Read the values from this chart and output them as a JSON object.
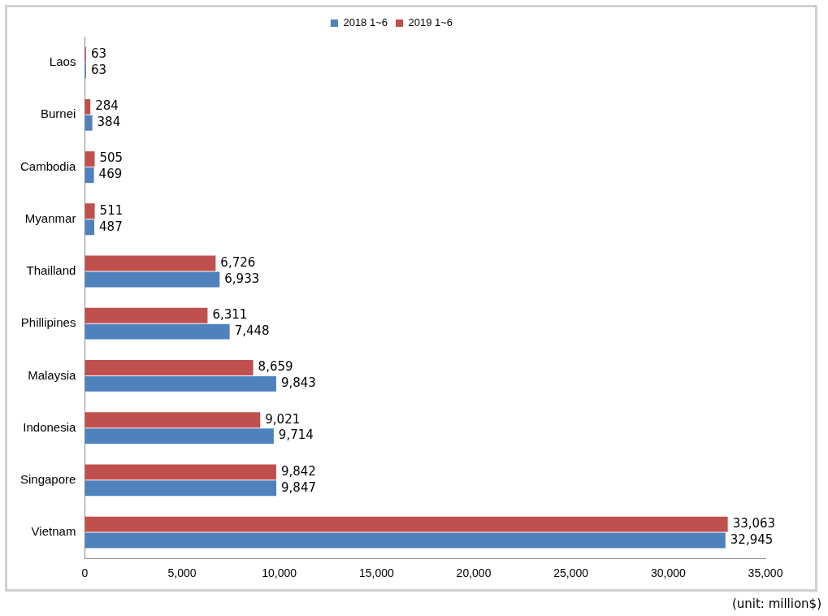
{
  "chart_data": {
    "type": "bar",
    "orientation": "horizontal",
    "categories": [
      "Laos",
      "Burnei",
      "Cambodia",
      "Myanmar",
      "Thailland",
      "Phillipines",
      "Malaysia",
      "Indonesia",
      "Singapore",
      "Vietnam"
    ],
    "series": [
      {
        "name": "2019 1~6",
        "color": "#c0504d",
        "values": [
          63,
          284,
          505,
          511,
          6726,
          6311,
          8659,
          9021,
          9842,
          33063
        ],
        "value_labels": [
          "63",
          "284",
          "505",
          "511",
          "6,726",
          "6,311",
          "8,659",
          "9,021",
          "9,842",
          "33,063"
        ]
      },
      {
        "name": "2018 1~6",
        "color": "#4f81bd",
        "values": [
          63,
          384,
          469,
          487,
          6933,
          7448,
          9843,
          9714,
          9847,
          32945
        ],
        "value_labels": [
          "63",
          "384",
          "469",
          "487",
          "6,933",
          "7,448",
          "9,843",
          "9,714",
          "9,847",
          "32,945"
        ]
      }
    ],
    "xlim": [
      0,
      35000
    ],
    "xticks": [
      0,
      {
        "value": 5000,
        "label": "5,000"
      },
      {
        "value": 10000,
        "label": "10,000"
      },
      {
        "value": 15000,
        "label": "15,000"
      },
      {
        "value": 20000,
        "label": "20,000"
      },
      {
        "value": 25000,
        "label": "25,000"
      },
      {
        "value": 30000,
        "label": "30,000"
      },
      {
        "value": 35000,
        "label": "35,000"
      }
    ],
    "grid": false,
    "legend": "top",
    "annotations": [
      "(unit: million$)"
    ]
  }
}
